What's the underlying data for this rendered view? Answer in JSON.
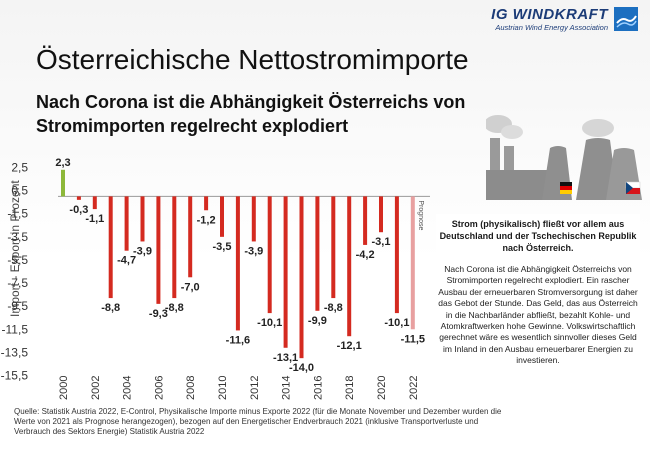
{
  "logo": {
    "name": "IG WINDKRAFT",
    "tagline": "Austrian Wind Energy Association"
  },
  "header": {
    "title": "Österreichische Nettostromimporte",
    "subtitle": "Nach Corona ist die Abhängigkeit Österreichs von Stromimporten regelrecht explodiert"
  },
  "colors": {
    "positive_bar": "#8db83a",
    "negative_bar": "#d42a20",
    "forecast_bar": "#e8a0a0"
  },
  "chart_data": {
    "type": "bar",
    "categories": [
      "2000",
      "2001",
      "2002",
      "2003",
      "2004",
      "2005",
      "2006",
      "2007",
      "2008",
      "2009",
      "2010",
      "2011",
      "2012",
      "2013",
      "2014",
      "2015",
      "2016",
      "2017",
      "2018",
      "2019",
      "2020",
      "2021",
      "2022"
    ],
    "values": [
      2.3,
      -0.3,
      -1.1,
      -8.8,
      -4.7,
      -3.9,
      -9.3,
      -8.8,
      -7.0,
      -1.2,
      -3.5,
      -11.6,
      -3.9,
      -10.1,
      -13.1,
      -14.0,
      -9.9,
      -8.8,
      -12.1,
      -4.2,
      -3.1,
      -10.1,
      -11.5
    ],
    "labels": [
      "2,3",
      "-0,3",
      "-1,1",
      "-8,8",
      "-4,7",
      "-3,9",
      "-9,3",
      "-8,8",
      "-7,0",
      "-1,2",
      "-3,5",
      "-11,6",
      "-3,9",
      "-10,1",
      "-13,1",
      "-14,0",
      "-9,9",
      "-8,8",
      "-12,1",
      "-4,2",
      "-3,1",
      "-10,1",
      "-11,5"
    ],
    "forecast_index": 22,
    "forecast_label": "Prognose",
    "ylabel": "Import - Export in Prozent",
    "yticks": [
      "2,5",
      "0,5",
      "-1,5",
      "-3,5",
      "-5,5",
      "-7,5",
      "-9,5",
      "-11,5",
      "-13,5",
      "-15,5"
    ],
    "ytick_values": [
      2.5,
      0.5,
      -1.5,
      -3.5,
      -5.5,
      -7.5,
      -9.5,
      -11.5,
      -13.5,
      -15.5
    ],
    "xticks": [
      "2000",
      "2002",
      "2004",
      "2006",
      "2008",
      "2010",
      "2012",
      "2014",
      "2016",
      "2018",
      "2020",
      "2022"
    ],
    "ylim": [
      -15.5,
      2.5
    ]
  },
  "textbox": {
    "bold": "Strom (physikalisch) fließt vor allem aus Deutschland und der Tschechischen Republik nach Österreich.",
    "body": "Nach Corona ist die Abhängigkeit Österreichs von Stromimporten regelrecht explodiert. Ein rascher Ausbau der erneuerbaren Stromversorgung ist daher das Gebot der Stunde. Das Geld, das aus Österreich in die Nachbarländer abfließt, bezahlt Kohle- und Atomkraftwerken hohe Gewinne. Volkswirtschaftlich gerechnet wäre es wesentlich sinnvoller dieses Geld im Inland in den Ausbau erneuerbarer Energien zu investieren."
  },
  "source": "Quelle: Statistik Austria 2022, E-Control, Physikalische Importe minus Exporte 2022 (für die Monate November und Dezember wurden die Werte von 2021 als Prognose herangezogen), bezogen auf den Energetischer Endverbrauch 2021 (inklusive Transportverluste und Verbrauch des Sektors Energie) Statistik Austria 2022"
}
